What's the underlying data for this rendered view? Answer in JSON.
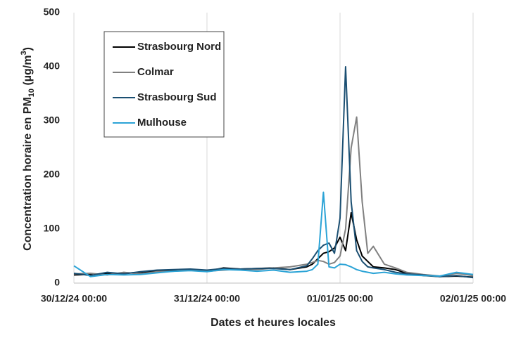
{
  "chart_data": {
    "type": "line",
    "x_label": "Dates et heures locales",
    "y_label": [
      "Concentration horaire en PM",
      "10",
      " (µg/m",
      "3",
      ")"
    ],
    "x": [
      "2024-12-30T00:00",
      "2024-12-30T03:00",
      "2024-12-30T06:00",
      "2024-12-30T09:00",
      "2024-12-30T12:00",
      "2024-12-30T15:00",
      "2024-12-30T18:00",
      "2024-12-30T21:00",
      "2024-12-31T00:00",
      "2024-12-31T03:00",
      "2024-12-31T06:00",
      "2024-12-31T09:00",
      "2024-12-31T12:00",
      "2024-12-31T15:00",
      "2024-12-31T18:00",
      "2024-12-31T19:00",
      "2024-12-31T20:00",
      "2024-12-31T21:00",
      "2024-12-31T22:00",
      "2024-12-31T23:00",
      "2025-01-01T00:00",
      "2025-01-01T01:00",
      "2025-01-01T02:00",
      "2025-01-01T03:00",
      "2025-01-01T04:00",
      "2025-01-01T05:00",
      "2025-01-01T06:00",
      "2025-01-01T08:00",
      "2025-01-01T10:00",
      "2025-01-01T12:00",
      "2025-01-01T15:00",
      "2025-01-01T18:00",
      "2025-01-01T21:00",
      "2025-01-02T00:00"
    ],
    "series": [
      {
        "name": "Strasbourg Nord",
        "color": "#000000",
        "values": [
          15,
          16,
          18,
          18,
          20,
          22,
          23,
          24,
          22,
          28,
          26,
          27,
          28,
          25,
          30,
          35,
          45,
          55,
          58,
          65,
          85,
          60,
          130,
          80,
          50,
          40,
          30,
          28,
          25,
          18,
          14,
          12,
          13,
          11
        ]
      },
      {
        "name": "Colmar",
        "color": "#808080",
        "values": [
          17,
          18,
          15,
          20,
          17,
          21,
          22,
          25,
          22,
          24,
          26,
          25,
          28,
          30,
          35,
          38,
          42,
          40,
          35,
          38,
          50,
          100,
          250,
          307,
          150,
          55,
          68,
          35,
          28,
          20,
          16,
          13,
          18,
          14
        ]
      },
      {
        "name": "Strasbourg Sud",
        "color": "#1b4f72",
        "values": [
          18,
          14,
          20,
          17,
          21,
          24,
          25,
          26,
          24,
          27,
          26,
          27,
          27,
          25,
          32,
          45,
          60,
          70,
          74,
          55,
          120,
          400,
          150,
          60,
          40,
          30,
          28,
          25,
          20,
          17,
          15,
          12,
          14,
          10
        ]
      },
      {
        "name": "Mulhouse",
        "color": "#2ba3d6",
        "values": [
          32,
          12,
          16,
          15,
          16,
          19,
          22,
          23,
          21,
          25,
          24,
          22,
          24,
          20,
          22,
          25,
          35,
          168,
          30,
          28,
          35,
          34,
          30,
          25,
          22,
          20,
          18,
          20,
          17,
          15,
          14,
          13,
          20,
          16
        ]
      }
    ],
    "xlim": [
      "2024-12-30T00:00",
      "2025-01-02T00:00"
    ],
    "xticks": [
      {
        "value": "2024-12-30T00:00",
        "label": "30/12/24 00:00"
      },
      {
        "value": "2024-12-31T00:00",
        "label": "31/12/24 00:00"
      },
      {
        "value": "2025-01-01T00:00",
        "label": "01/01/25 00:00"
      },
      {
        "value": "2025-01-02T00:00",
        "label": "02/01/25 00:00"
      }
    ],
    "ylim": [
      0,
      500
    ],
    "yticks": [
      0,
      100,
      200,
      300,
      400,
      500
    ],
    "grid": "x"
  }
}
